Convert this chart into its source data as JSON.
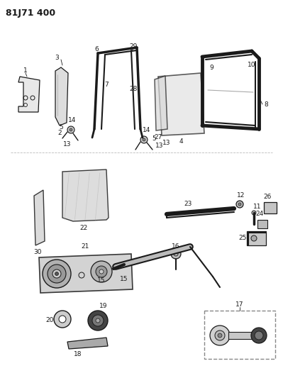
{
  "title": "81J71 400",
  "bg_color": "#ffffff",
  "title_fontsize": 9,
  "fig_width": 3.99,
  "fig_height": 5.33,
  "dpi": 100
}
